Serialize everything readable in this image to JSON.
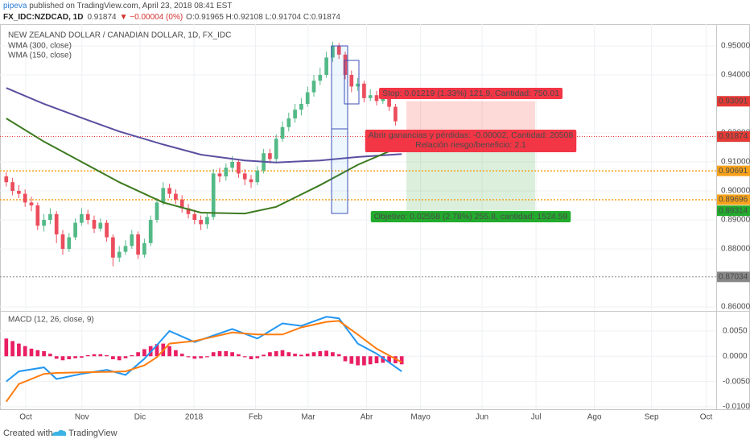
{
  "header": {
    "author": "pipeva",
    "published": " published on TradingView.com, April 23, 2018 08:41 EST",
    "symbol": "FX_IDC:NZDCAD, 1D",
    "last": "0.91874",
    "change": "▼ −0.00004 (0%)",
    "ohlc": "O:0.91965 H:0.92108 L:0.91704 C:0.91874"
  },
  "footer": {
    "created": "Created with",
    "brand": "TradingView"
  },
  "chart_data": [
    {
      "type": "candlestick",
      "title": "NEW ZEALAND DOLLAR / CANADIAN DOLLAR, 1D, FX_IDC",
      "up_color": "#53b987",
      "down_color": "#eb4d5c",
      "categories": [
        null,
        null,
        null,
        null,
        null,
        null,
        null,
        null,
        null,
        null,
        null,
        null,
        null,
        null,
        null,
        null,
        null,
        null,
        null,
        null,
        null,
        null,
        null,
        null,
        null,
        null,
        null,
        null,
        null,
        null,
        null,
        null,
        null,
        null,
        null,
        null,
        null,
        null,
        null,
        null,
        null,
        null,
        null,
        null,
        null,
        null,
        null,
        null,
        null,
        null,
        null,
        null,
        null,
        null,
        null,
        null,
        null,
        null,
        null,
        null,
        null,
        null,
        null,
        null
      ],
      "open": [
        0.905,
        0.903,
        0.9,
        0.899,
        0.896,
        0.895,
        0.888,
        0.89,
        0.892,
        0.885,
        0.88,
        0.884,
        0.889,
        0.892,
        0.89,
        0.887,
        0.889,
        0.884,
        0.877,
        0.879,
        0.881,
        0.885,
        0.878,
        0.882,
        0.89,
        0.896,
        0.901,
        0.899,
        0.897,
        0.894,
        0.892,
        0.89,
        0.8885,
        0.891,
        0.906,
        0.905,
        0.908,
        0.91,
        0.906,
        0.904,
        0.903,
        0.907,
        0.913,
        0.911,
        0.918,
        0.922,
        0.925,
        0.928,
        0.93,
        0.934,
        0.938,
        0.94,
        0.946,
        0.95,
        0.947,
        0.94,
        0.936,
        0.937,
        0.932,
        0.933,
        0.931,
        0.932,
        0.929,
        0.91965
      ],
      "high": [
        0.9065,
        0.9045,
        0.902,
        0.9005,
        0.898,
        0.896,
        0.892,
        0.894,
        0.893,
        0.8865,
        0.8855,
        0.8905,
        0.894,
        0.8935,
        0.8915,
        0.8905,
        0.89,
        0.885,
        0.881,
        0.883,
        0.8865,
        0.886,
        0.8835,
        0.8915,
        0.8975,
        0.903,
        0.9025,
        0.9005,
        0.8985,
        0.8955,
        0.8935,
        0.8915,
        0.8925,
        0.9075,
        0.908,
        0.9095,
        0.912,
        0.911,
        0.9075,
        0.9055,
        0.9085,
        0.9145,
        0.9145,
        0.9195,
        0.924,
        0.927,
        0.93,
        0.932,
        0.936,
        0.94,
        0.9425,
        0.948,
        0.9515,
        0.951,
        0.948,
        0.9415,
        0.939,
        0.938,
        0.935,
        0.9345,
        0.9335,
        0.933,
        0.93,
        0.92108
      ],
      "low": [
        0.9015,
        0.8985,
        0.8975,
        0.8945,
        0.893,
        0.8865,
        0.886,
        0.8885,
        0.882,
        0.878,
        0.879,
        0.883,
        0.888,
        0.8885,
        0.8855,
        0.886,
        0.8825,
        0.874,
        0.8755,
        0.878,
        0.88,
        0.8765,
        0.877,
        0.881,
        0.889,
        0.895,
        0.8975,
        0.8955,
        0.8925,
        0.8905,
        0.8885,
        0.8865,
        0.887,
        0.89,
        0.903,
        0.9035,
        0.9065,
        0.9045,
        0.902,
        0.901,
        0.902,
        0.906,
        0.9095,
        0.91,
        0.917,
        0.9205,
        0.9235,
        0.926,
        0.929,
        0.9325,
        0.9365,
        0.939,
        0.9445,
        0.9455,
        0.9385,
        0.934,
        0.9345,
        0.9305,
        0.931,
        0.9295,
        0.93,
        0.9275,
        0.9225,
        0.91704
      ],
      "close": [
        0.903,
        0.9,
        0.899,
        0.896,
        0.895,
        0.888,
        0.89,
        0.892,
        0.885,
        0.88,
        0.884,
        0.889,
        0.892,
        0.89,
        0.887,
        0.889,
        0.884,
        0.877,
        0.879,
        0.881,
        0.885,
        0.878,
        0.882,
        0.89,
        0.896,
        0.901,
        0.899,
        0.897,
        0.894,
        0.892,
        0.89,
        0.8885,
        0.891,
        0.906,
        0.905,
        0.908,
        0.91,
        0.906,
        0.904,
        0.903,
        0.907,
        0.913,
        0.911,
        0.918,
        0.922,
        0.925,
        0.928,
        0.93,
        0.934,
        0.938,
        0.94,
        0.946,
        0.95,
        0.947,
        0.94,
        0.936,
        0.937,
        0.932,
        0.933,
        0.931,
        0.932,
        0.929,
        0.924,
        0.91874
      ],
      "series": [
        {
          "name": "WMA (300, close)",
          "color": "#5b4f9f",
          "x": [
            0,
            6,
            12,
            18,
            25,
            31,
            38,
            43,
            50,
            56,
            63
          ],
          "values": [
            0.9355,
            0.93,
            0.9252,
            0.9205,
            0.916,
            0.9125,
            0.9105,
            0.9098,
            0.9105,
            0.9117,
            0.9127
          ]
        },
        {
          "name": "WMA (150, close)",
          "color": "#3d7a1f",
          "x": [
            0,
            6,
            12,
            18,
            25,
            31,
            38,
            43,
            50,
            56,
            63
          ],
          "values": [
            0.925,
            0.917,
            0.91,
            0.903,
            0.896,
            0.8925,
            0.8922,
            0.8945,
            0.902,
            0.909,
            0.9155
          ]
        }
      ],
      "position": {
        "stop": 0.93091,
        "entry": 0.91874,
        "target": 0.89314,
        "stop_label": "Stop: 0.01219 (1.33%) 121,9, Cantidad: 750.01",
        "entry_label": [
          "Abrir ganancias y pérdidas: -0.00002, Cantidad: 20508",
          "Relación riesgo/beneficio: 2.1"
        ],
        "target_label": "Objetivo: 0.02558 (2.78%) 255.8, cantidad: 1524.59"
      },
      "price_tags": [
        {
          "value": 0.91872,
          "color": "#333333",
          "dotted": false
        },
        {
          "value": 0.90691,
          "color": "#f7a21b",
          "dotted": true
        },
        {
          "value": 0.89696,
          "color": "#f7a21b",
          "dotted": true
        },
        {
          "value": 0.87034,
          "color": "#888888",
          "dotted": true
        }
      ],
      "xlim": [
        -1,
        113.1
      ],
      "xticks": [
        {
          "value": 3.1,
          "label": "Oct"
        },
        {
          "value": 12.05,
          "label": "Nov"
        },
        {
          "value": 21.3,
          "label": "Dic"
        },
        {
          "value": 29.9,
          "label": "2018"
        },
        {
          "value": 39.7,
          "label": "Feb"
        },
        {
          "value": 48.1,
          "label": "Mar"
        },
        {
          "value": 57.4,
          "label": "Abr"
        },
        {
          "value": 66.0,
          "label": "Mayo"
        },
        {
          "value": 75.8,
          "label": "Jun"
        },
        {
          "value": 84.4,
          "label": "Jul"
        },
        {
          "value": 93.7,
          "label": "Ago"
        },
        {
          "value": 102.8,
          "label": "Sep"
        },
        {
          "value": 111.5,
          "label": "Oct"
        }
      ],
      "ylim": [
        0.85889,
        0.9575
      ],
      "yticks": [
        {
          "value": 0.95,
          "label": "0.95000"
        },
        {
          "value": 0.94,
          "label": "0.94000"
        },
        {
          "value": 0.92,
          "label": "0.92000"
        },
        {
          "value": 0.91,
          "label": "0.91000"
        },
        {
          "value": 0.9,
          "label": "0.90000"
        },
        {
          "value": 0.89,
          "label": "0.89000"
        },
        {
          "value": 0.88,
          "label": "0.88000"
        },
        {
          "value": 0.86,
          "label": "0.86000"
        }
      ],
      "grid": true
    },
    {
      "type": "macd",
      "title": "MACD (12, 26, close, 9)",
      "histogram_color": "#e91e63",
      "histogram": [
        0.0035,
        0.003,
        0.0025,
        0.002,
        0.0015,
        0.0012,
        0.001,
        0.0005,
        -0.0005,
        -0.0008,
        -0.0006,
        -0.0004,
        -0.0003,
        0.0002,
        0.0004,
        0.0004,
        0.0002,
        -0.0006,
        -0.0008,
        -0.0004,
        0.0002,
        0.0008,
        0.0014,
        0.002,
        0.0024,
        0.0025,
        0.002,
        0.0012,
        0.0005,
        -0.0002,
        -0.0005,
        -0.0004,
        -0.0002,
        0.0008,
        0.001,
        0.001,
        0.0008,
        0.0004,
        -0.0002,
        -0.0006,
        -0.0004,
        0.0003,
        0.0008,
        0.001,
        0.0012,
        0.0008,
        0.0005,
        0.0003,
        0.0005,
        0.0008,
        0.001,
        0.0011,
        0.0008,
        0.0004,
        -0.001,
        -0.0015,
        -0.0018,
        -0.0018,
        -0.0016,
        -0.0014,
        -0.0013,
        -0.0012,
        -0.0014,
        -0.0016
      ],
      "series": [
        {
          "color": "#2196f3",
          "x": [
            0,
            2,
            6,
            8,
            12,
            16,
            19,
            22,
            24,
            26,
            30,
            36,
            40,
            44,
            47,
            51,
            53,
            56,
            59,
            63
          ],
          "values": [
            -0.005,
            -0.003,
            -0.0022,
            -0.0045,
            -0.0035,
            -0.0027,
            -0.0037,
            -0.0005,
            0.0022,
            0.005,
            0.0028,
            0.0054,
            0.0035,
            0.0065,
            0.006,
            0.0078,
            0.0075,
            0.0025,
            0.0005,
            -0.003
          ]
        },
        {
          "color": "#ff7d0f",
          "x": [
            0,
            2,
            6,
            8,
            12,
            16,
            19,
            22,
            24,
            26,
            30,
            36,
            40,
            44,
            47,
            51,
            53,
            56,
            59,
            63
          ],
          "values": [
            -0.009,
            -0.0055,
            -0.0035,
            -0.0033,
            -0.0032,
            -0.0031,
            -0.003,
            -0.0018,
            -0.0002,
            0.0025,
            0.003,
            0.0047,
            0.0043,
            0.0043,
            0.0057,
            0.0068,
            0.007,
            0.0043,
            0.0015,
            -0.0012
          ]
        }
      ],
      "ylim": [
        -0.01048,
        0.00865
      ],
      "yticks": [
        {
          "value": 0.005,
          "label": "0.0050"
        },
        {
          "value": 0,
          "label": "0.0000"
        },
        {
          "value": -0.005,
          "label": "-0.0050"
        },
        {
          "value": -0.01,
          "label": "-0.0100"
        }
      ],
      "grid": true
    }
  ]
}
